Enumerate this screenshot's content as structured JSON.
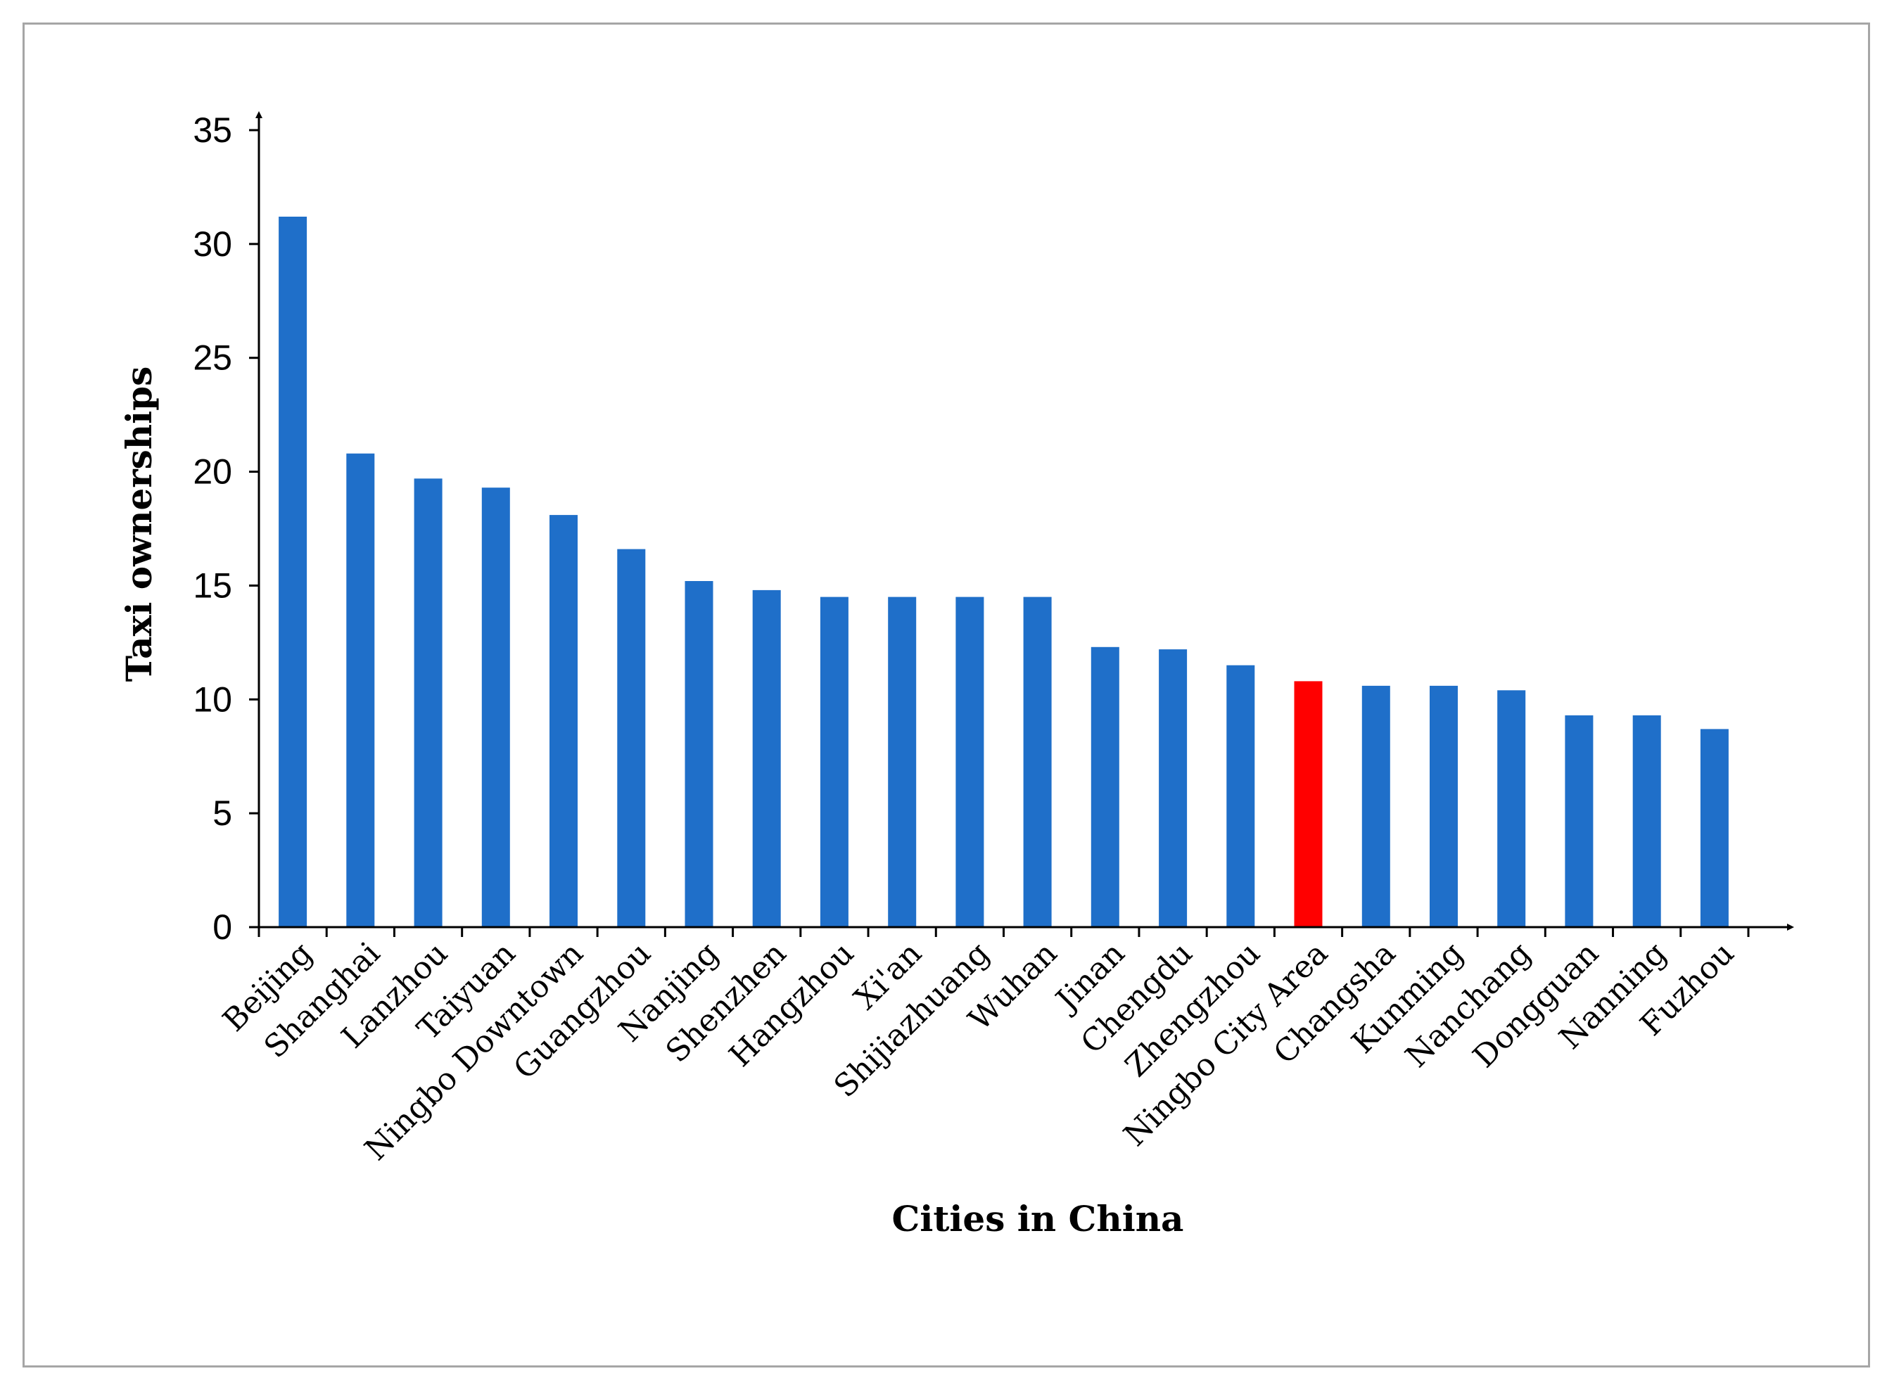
{
  "chart_data": {
    "type": "bar",
    "title": "",
    "xlabel": "Cities in China",
    "ylabel": "Taxi ownerships",
    "ylim": [
      0,
      35
    ],
    "yticks": [
      0,
      5,
      10,
      15,
      20,
      25,
      30,
      35
    ],
    "grid": false,
    "legend": "none",
    "categories": [
      "Beijing",
      "Shanghai",
      "Lanzhou",
      "Taiyuan",
      "Ningbo Downtown",
      "Guangzhou",
      "Nanjing",
      "Shenzhen",
      "Hangzhou",
      "Xi'an",
      "Shijiazhuang",
      "Wuhan",
      "Jinan",
      "Chengdu",
      "Zhengzhou",
      "Ningbo City Area",
      "Changsha",
      "Kunming",
      "Nanchang",
      "Dongguan",
      "Nanning",
      "Fuzhou"
    ],
    "values": [
      31.2,
      20.8,
      19.7,
      19.3,
      18.1,
      16.6,
      15.2,
      14.8,
      14.5,
      14.5,
      14.5,
      14.5,
      12.3,
      12.2,
      11.5,
      10.8,
      10.6,
      10.6,
      10.4,
      9.3,
      9.3,
      8.7
    ],
    "highlight_category": "Ningbo City Area",
    "colors": {
      "bar": "#1f6fc9",
      "highlight": "#ff0000",
      "axis": "#000000"
    }
  }
}
